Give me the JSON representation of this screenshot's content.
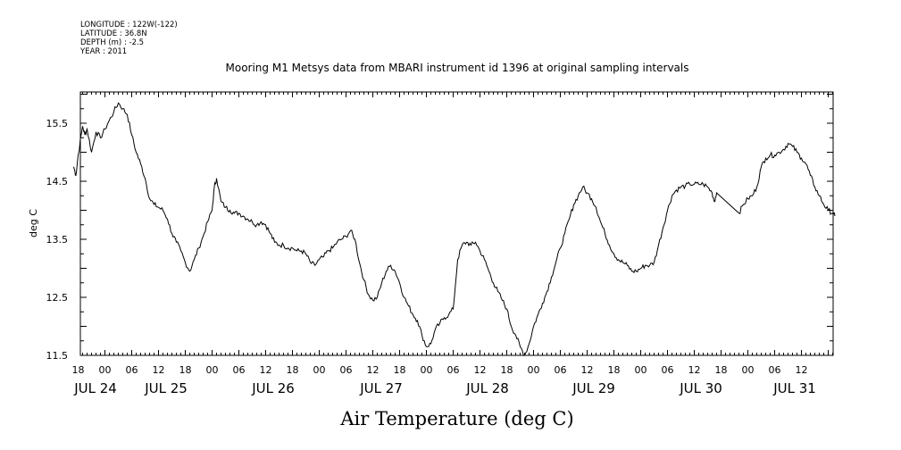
{
  "header": {
    "longitude": "LONGITUDE : 122W(-122)",
    "latitude": "LATITUDE : 36.8N",
    "depth": "DEPTH (m) : -2.5",
    "year": "YEAR : 2011"
  },
  "chart_data": {
    "type": "line",
    "title": "Mooring M1 Metsys data from MBARI instrument id 1396 at original sampling intervals",
    "xlabel": "Air Temperature (deg C)",
    "ylabel": "deg C",
    "x_unit": "hours from JUL 24 00:00, 2011",
    "xlim": [
      -8,
      164
    ],
    "ylim": [
      11.5,
      16.0
    ],
    "y_ticks": [
      "11.5",
      "12.5",
      "13.5",
      "14.5",
      "15.5"
    ],
    "x_tick_labels": [
      "18",
      "00",
      "06",
      "12",
      "18",
      "00",
      "06",
      "12",
      "18",
      "00",
      "06",
      "12",
      "18",
      "00",
      "06",
      "12",
      "18",
      "00",
      "06",
      "12",
      "18",
      "00",
      "06",
      "12",
      "18",
      "00",
      "06",
      "12"
    ],
    "day_labels": [
      "JUL 24",
      "JUL 25",
      "JUL 26",
      "JUL 27",
      "JUL 28",
      "JUL 29",
      "JUL 30",
      "JUL 31"
    ],
    "grid": false,
    "series": [
      {
        "points": [
          [
            -7,
            14.75
          ],
          [
            -6.5,
            14.6
          ],
          [
            -6,
            14.95
          ],
          [
            -5,
            15.45
          ],
          [
            -4.5,
            15.3
          ],
          [
            -4,
            15.4
          ],
          [
            -3,
            15.0
          ],
          [
            -2,
            15.35
          ],
          [
            -1,
            15.25
          ],
          [
            0,
            15.4
          ],
          [
            1,
            15.55
          ],
          [
            2,
            15.7
          ],
          [
            3,
            15.85
          ],
          [
            4,
            15.75
          ],
          [
            5,
            15.65
          ],
          [
            6,
            15.3
          ],
          [
            7,
            15.0
          ],
          [
            8,
            14.8
          ],
          [
            9,
            14.55
          ],
          [
            10,
            14.2
          ],
          [
            11,
            14.1
          ],
          [
            12,
            14.05
          ],
          [
            13,
            14.0
          ],
          [
            14,
            13.85
          ],
          [
            15,
            13.6
          ],
          [
            16,
            13.45
          ],
          [
            17,
            13.3
          ],
          [
            18,
            13.1
          ],
          [
            19,
            12.95
          ],
          [
            20,
            13.15
          ],
          [
            21,
            13.35
          ],
          [
            22,
            13.55
          ],
          [
            23,
            13.8
          ],
          [
            24,
            14.0
          ],
          [
            24.5,
            14.4
          ],
          [
            25,
            14.55
          ],
          [
            26,
            14.15
          ],
          [
            27,
            14.05
          ],
          [
            28,
            14.0
          ],
          [
            29,
            13.95
          ],
          [
            30,
            13.95
          ],
          [
            31,
            13.9
          ],
          [
            32,
            13.85
          ],
          [
            33,
            13.8
          ],
          [
            34,
            13.75
          ],
          [
            35,
            13.8
          ],
          [
            36,
            13.75
          ],
          [
            37,
            13.6
          ],
          [
            38,
            13.45
          ],
          [
            39,
            13.4
          ],
          [
            40,
            13.4
          ],
          [
            41,
            13.35
          ],
          [
            42,
            13.35
          ],
          [
            43,
            13.3
          ],
          [
            44,
            13.3
          ],
          [
            45,
            13.25
          ],
          [
            46,
            13.1
          ],
          [
            47,
            13.05
          ],
          [
            48,
            13.15
          ],
          [
            49,
            13.2
          ],
          [
            50,
            13.3
          ],
          [
            51,
            13.35
          ],
          [
            52,
            13.45
          ],
          [
            53,
            13.5
          ],
          [
            54,
            13.55
          ],
          [
            55,
            13.65
          ],
          [
            56,
            13.5
          ],
          [
            57,
            13.1
          ],
          [
            58,
            12.8
          ],
          [
            59,
            12.55
          ],
          [
            60,
            12.45
          ],
          [
            61,
            12.5
          ],
          [
            62,
            12.75
          ],
          [
            63,
            12.95
          ],
          [
            64,
            13.05
          ],
          [
            65,
            12.95
          ],
          [
            66,
            12.75
          ],
          [
            67,
            12.5
          ],
          [
            68,
            12.35
          ],
          [
            69,
            12.2
          ],
          [
            70,
            12.1
          ],
          [
            71,
            11.85
          ],
          [
            72,
            11.65
          ],
          [
            73,
            11.7
          ],
          [
            74,
            11.95
          ],
          [
            75,
            12.05
          ],
          [
            76,
            12.15
          ],
          [
            77,
            12.2
          ],
          [
            78,
            12.3
          ],
          [
            79,
            13.15
          ],
          [
            80,
            13.4
          ],
          [
            81,
            13.45
          ],
          [
            82,
            13.4
          ],
          [
            83,
            13.45
          ],
          [
            84,
            13.3
          ],
          [
            85,
            13.15
          ],
          [
            86,
            12.95
          ],
          [
            87,
            12.75
          ],
          [
            88,
            12.6
          ],
          [
            89,
            12.45
          ],
          [
            90,
            12.3
          ],
          [
            91,
            12.0
          ],
          [
            92,
            11.85
          ],
          [
            93,
            11.65
          ],
          [
            94,
            11.5
          ],
          [
            95,
            11.7
          ],
          [
            96,
            12.0
          ],
          [
            97,
            12.2
          ],
          [
            98,
            12.4
          ],
          [
            99,
            12.6
          ],
          [
            100,
            12.85
          ],
          [
            101,
            13.1
          ],
          [
            102,
            13.35
          ],
          [
            103,
            13.6
          ],
          [
            104,
            13.85
          ],
          [
            105,
            14.1
          ],
          [
            106,
            14.25
          ],
          [
            107,
            14.4
          ],
          [
            108,
            14.3
          ],
          [
            109,
            14.2
          ],
          [
            110,
            14.05
          ],
          [
            111,
            13.8
          ],
          [
            112,
            13.6
          ],
          [
            113,
            13.4
          ],
          [
            114,
            13.25
          ],
          [
            115,
            13.15
          ],
          [
            116,
            13.1
          ],
          [
            117,
            13.05
          ],
          [
            118,
            12.95
          ],
          [
            119,
            12.95
          ],
          [
            120,
            13.0
          ],
          [
            121,
            13.05
          ],
          [
            122,
            13.05
          ],
          [
            123,
            13.1
          ],
          [
            124,
            13.4
          ],
          [
            125,
            13.7
          ],
          [
            126,
            14.0
          ],
          [
            127,
            14.25
          ],
          [
            128,
            14.35
          ],
          [
            129,
            14.4
          ],
          [
            130,
            14.42
          ],
          [
            131,
            14.45
          ],
          [
            132,
            14.45
          ],
          [
            133,
            14.45
          ],
          [
            134,
            14.45
          ],
          [
            135,
            14.4
          ],
          [
            136,
            14.3
          ],
          [
            136.5,
            14.15
          ],
          [
            137,
            14.3
          ],
          [
            142,
            13.95
          ],
          [
            143,
            14.1
          ],
          [
            144,
            14.2
          ],
          [
            145,
            14.25
          ],
          [
            146,
            14.4
          ],
          [
            147,
            14.75
          ],
          [
            148,
            14.9
          ],
          [
            149,
            14.95
          ],
          [
            150,
            14.95
          ],
          [
            151,
            15.0
          ],
          [
            152,
            15.05
          ],
          [
            153,
            15.15
          ],
          [
            154,
            15.1
          ],
          [
            155,
            15.0
          ],
          [
            156,
            14.9
          ],
          [
            157,
            14.8
          ],
          [
            158,
            14.6
          ],
          [
            159,
            14.4
          ],
          [
            160,
            14.25
          ],
          [
            161,
            14.1
          ],
          [
            162,
            14.0
          ],
          [
            163,
            13.95
          ],
          [
            163.5,
            13.9
          ]
        ]
      }
    ]
  }
}
